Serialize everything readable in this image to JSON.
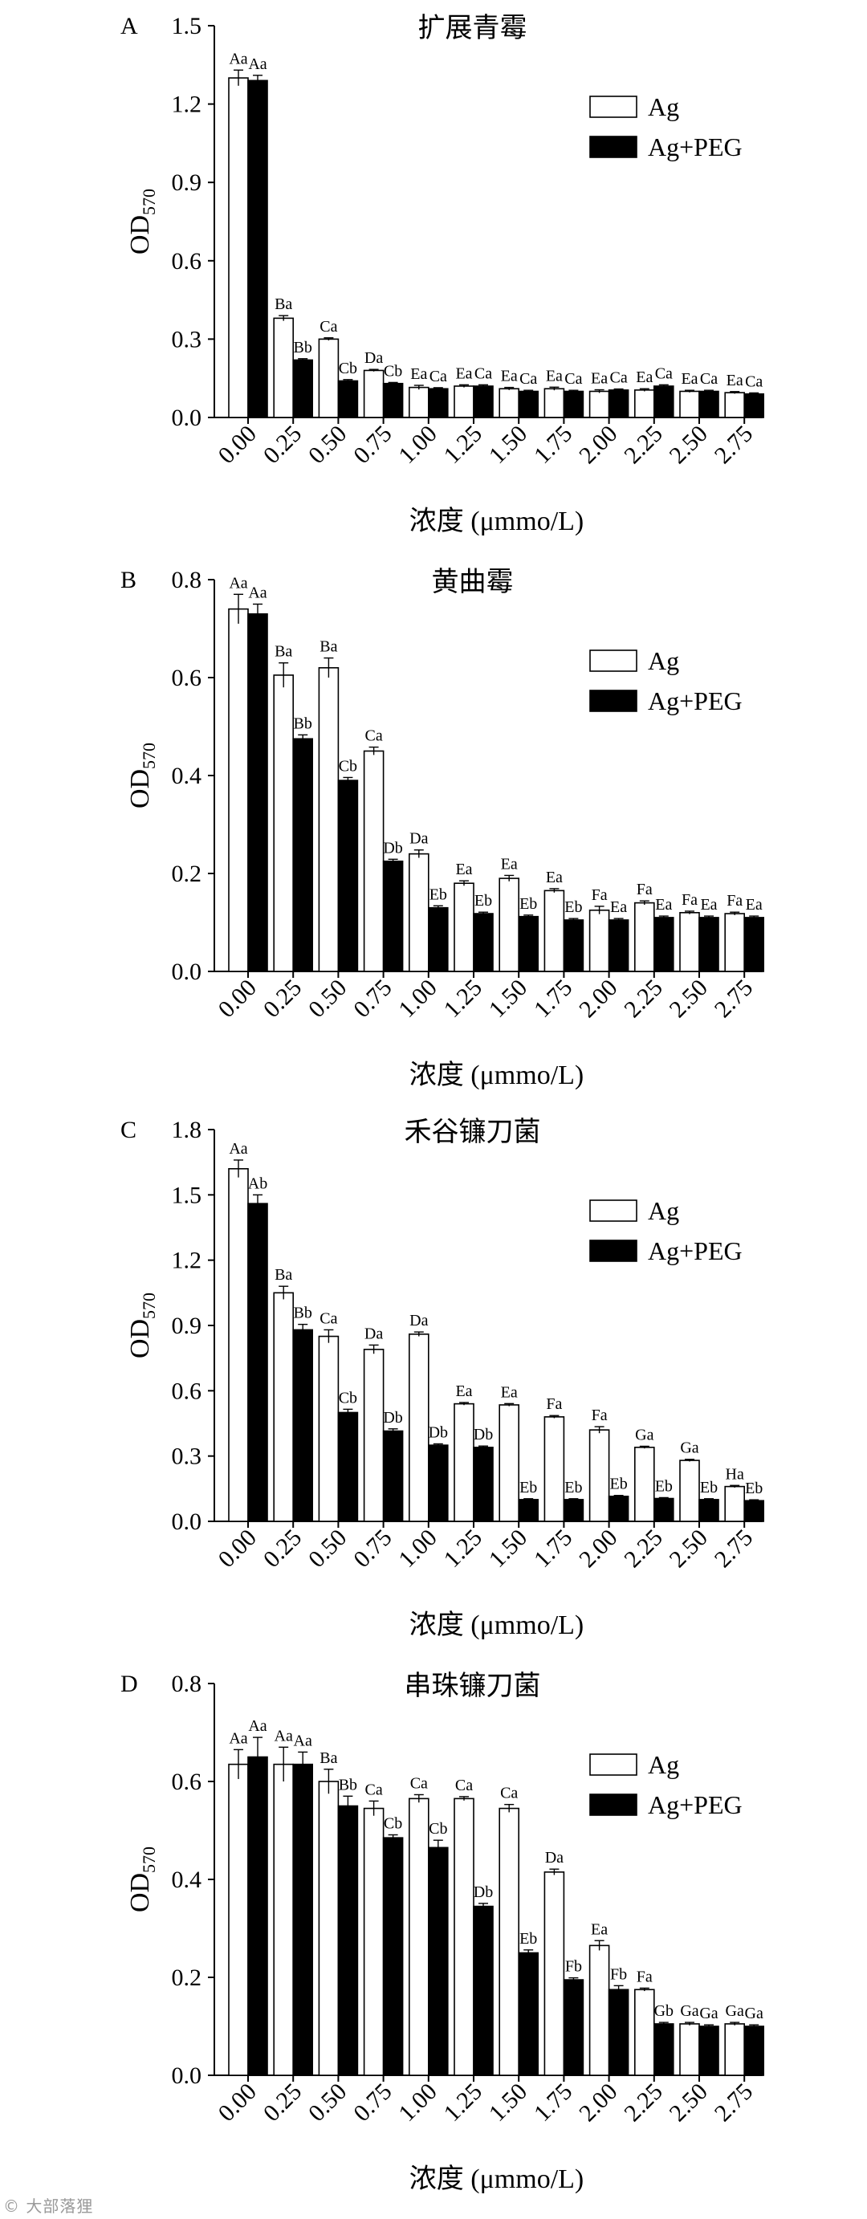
{
  "chart_data": [
    {
      "type": "bar",
      "panel_label": "A",
      "title": "扩展青霉",
      "xlabel": "浓度 (μmmo/L)",
      "ylabel": "OD",
      "ylabel_subscript": "570",
      "ylim": [
        0,
        1.5
      ],
      "yticks": [
        "0.0",
        "0.3",
        "0.6",
        "0.9",
        "1.2",
        "1.5"
      ],
      "legend_position": "top-right",
      "categories": [
        "0.00",
        "0.25",
        "0.50",
        "0.75",
        "1.00",
        "1.25",
        "1.50",
        "1.75",
        "2.00",
        "2.25",
        "2.50",
        "2.75"
      ],
      "series": [
        {
          "name": "Ag",
          "fill": "#ffffff",
          "values": [
            1.3,
            0.38,
            0.3,
            0.18,
            0.115,
            0.12,
            0.11,
            0.11,
            0.1,
            0.105,
            0.1,
            0.095
          ],
          "errors": [
            0.03,
            0.01,
            0.005,
            0.004,
            0.008,
            0.005,
            0.005,
            0.006,
            0.006,
            0.005,
            0.004,
            0.004
          ],
          "labels": [
            "Aa",
            "Ba",
            "Ca",
            "Da",
            "Ea",
            "Ea",
            "Ea",
            "Ea",
            "Ea",
            "Ea",
            "Ea",
            "Ea"
          ]
        },
        {
          "name": "Ag+PEG",
          "fill": "#000000",
          "values": [
            1.29,
            0.22,
            0.14,
            0.13,
            0.11,
            0.12,
            0.1,
            0.1,
            0.105,
            0.12,
            0.1,
            0.09
          ],
          "errors": [
            0.02,
            0.005,
            0.005,
            0.004,
            0.004,
            0.005,
            0.004,
            0.004,
            0.004,
            0.005,
            0.004,
            0.004
          ],
          "labels": [
            "Aa",
            "Bb",
            "Cb",
            "Cb",
            "Ca",
            "Ca",
            "Ca",
            "Ca",
            "Ca",
            "Ca",
            "Ca",
            "Ca"
          ]
        }
      ]
    },
    {
      "type": "bar",
      "panel_label": "B",
      "title": "黄曲霉",
      "xlabel": "浓度 (μmmo/L)",
      "ylabel": "OD",
      "ylabel_subscript": "570",
      "ylim": [
        0,
        0.8
      ],
      "yticks": [
        "0.0",
        "0.2",
        "0.4",
        "0.6",
        "0.8"
      ],
      "legend_position": "top-right",
      "categories": [
        "0.00",
        "0.25",
        "0.50",
        "0.75",
        "1.00",
        "1.25",
        "1.50",
        "1.75",
        "2.00",
        "2.25",
        "2.50",
        "2.75"
      ],
      "series": [
        {
          "name": "Ag",
          "fill": "#ffffff",
          "values": [
            0.74,
            0.605,
            0.62,
            0.45,
            0.24,
            0.18,
            0.19,
            0.165,
            0.125,
            0.14,
            0.12,
            0.118
          ],
          "errors": [
            0.03,
            0.025,
            0.02,
            0.008,
            0.008,
            0.005,
            0.006,
            0.004,
            0.008,
            0.004,
            0.003,
            0.003
          ],
          "labels": [
            "Aa",
            "Ba",
            "Ba",
            "Ca",
            "Da",
            "Ea",
            "Ea",
            "Ea",
            "Fa",
            "Fa",
            "Fa",
            "Fa"
          ]
        },
        {
          "name": "Ag+PEG",
          "fill": "#000000",
          "values": [
            0.73,
            0.475,
            0.39,
            0.225,
            0.13,
            0.118,
            0.112,
            0.105,
            0.105,
            0.11,
            0.11,
            0.11
          ],
          "errors": [
            0.02,
            0.008,
            0.006,
            0.004,
            0.004,
            0.003,
            0.003,
            0.003,
            0.003,
            0.003,
            0.003,
            0.003
          ],
          "labels": [
            "Aa",
            "Bb",
            "Cb",
            "Db",
            "Eb",
            "Eb",
            "Eb",
            "Eb",
            "Ea",
            "Ea",
            "Ea",
            "Ea"
          ]
        }
      ]
    },
    {
      "type": "bar",
      "panel_label": "C",
      "title": "禾谷镰刀菌",
      "xlabel": "浓度 (μmmo/L)",
      "ylabel": "OD",
      "ylabel_subscript": "570",
      "ylim": [
        0,
        1.8
      ],
      "yticks": [
        "0.0",
        "0.3",
        "0.6",
        "0.9",
        "1.2",
        "1.5",
        "1.8"
      ],
      "legend_position": "top-right",
      "categories": [
        "0.00",
        "0.25",
        "0.50",
        "0.75",
        "1.00",
        "1.25",
        "1.50",
        "1.75",
        "2.00",
        "2.25",
        "2.50",
        "2.75"
      ],
      "series": [
        {
          "name": "Ag",
          "fill": "#ffffff",
          "values": [
            1.62,
            1.05,
            0.85,
            0.79,
            0.86,
            0.54,
            0.535,
            0.48,
            0.42,
            0.34,
            0.28,
            0.16
          ],
          "errors": [
            0.04,
            0.03,
            0.03,
            0.02,
            0.01,
            0.006,
            0.006,
            0.006,
            0.015,
            0.005,
            0.005,
            0.005
          ],
          "labels": [
            "Aa",
            "Ba",
            "Ca",
            "Da",
            "Da",
            "Ea",
            "Ea",
            "Fa",
            "Fa",
            "Ga",
            "Ga",
            "Ha"
          ]
        },
        {
          "name": "Ag+PEG",
          "fill": "#000000",
          "values": [
            1.46,
            0.88,
            0.5,
            0.415,
            0.35,
            0.34,
            0.1,
            0.1,
            0.115,
            0.105,
            0.1,
            0.095
          ],
          "errors": [
            0.04,
            0.025,
            0.015,
            0.01,
            0.006,
            0.006,
            0.004,
            0.004,
            0.004,
            0.004,
            0.004,
            0.004
          ],
          "labels": [
            "Ab",
            "Bb",
            "Cb",
            "Db",
            "Db",
            "Db",
            "Eb",
            "Eb",
            "Eb",
            "Eb",
            "Eb",
            "Eb"
          ]
        }
      ]
    },
    {
      "type": "bar",
      "panel_label": "D",
      "title": "串珠镰刀菌",
      "xlabel": "浓度 (μmmo/L)",
      "ylabel": "OD",
      "ylabel_subscript": "570",
      "ylim": [
        0,
        0.8
      ],
      "yticks": [
        "0.0",
        "0.2",
        "0.4",
        "0.6",
        "0.8"
      ],
      "legend_position": "top-right",
      "categories": [
        "0.00",
        "0.25",
        "0.50",
        "0.75",
        "1.00",
        "1.25",
        "1.50",
        "1.75",
        "2.00",
        "2.25",
        "2.50",
        "2.75"
      ],
      "series": [
        {
          "name": "Ag",
          "fill": "#ffffff",
          "values": [
            0.635,
            0.635,
            0.6,
            0.545,
            0.565,
            0.565,
            0.545,
            0.415,
            0.265,
            0.175,
            0.105,
            0.105
          ],
          "errors": [
            0.03,
            0.035,
            0.025,
            0.015,
            0.008,
            0.004,
            0.008,
            0.006,
            0.01,
            0.003,
            0.003,
            0.003
          ],
          "labels": [
            "Aa",
            "Aa",
            "Ba",
            "Ca",
            "Ca",
            "Ca",
            "Ca",
            "Da",
            "Ea",
            "Fa",
            "Ga",
            "Ga"
          ]
        },
        {
          "name": "Ag+PEG",
          "fill": "#000000",
          "values": [
            0.65,
            0.635,
            0.55,
            0.485,
            0.465,
            0.345,
            0.25,
            0.195,
            0.175,
            0.105,
            0.1,
            0.1
          ],
          "errors": [
            0.04,
            0.025,
            0.02,
            0.006,
            0.015,
            0.006,
            0.006,
            0.004,
            0.008,
            0.003,
            0.003,
            0.003
          ],
          "labels": [
            "Aa",
            "Aa",
            "Bb",
            "Cb",
            "Cb",
            "Db",
            "Eb",
            "Fb",
            "Fb",
            "Gb",
            "Ga",
            "Ga"
          ]
        }
      ]
    }
  ],
  "watermark": "© 大部落狸"
}
